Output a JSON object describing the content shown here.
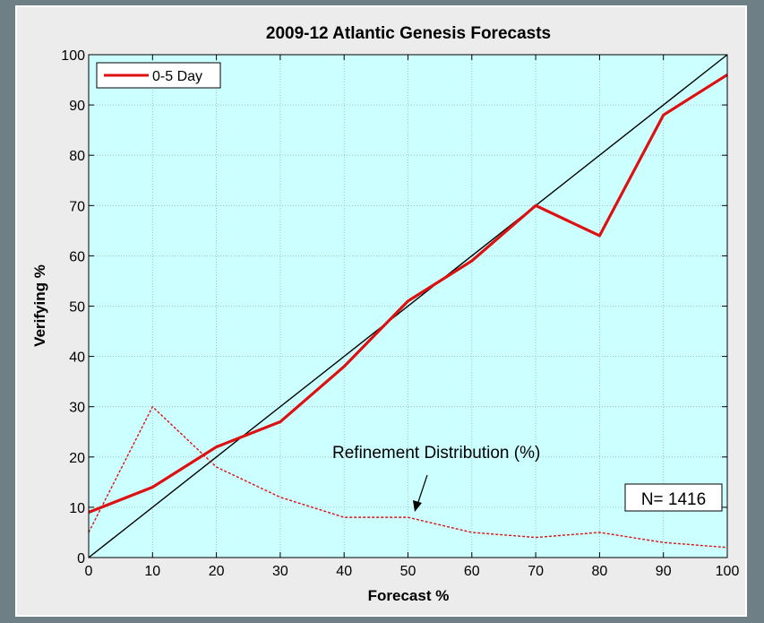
{
  "chart_data": {
    "type": "line",
    "title": "2009-12 Atlantic Genesis Forecasts",
    "xlabel": "Forecast %",
    "ylabel": "Verifying %",
    "xlim": [
      0,
      100
    ],
    "ylim": [
      0,
      100
    ],
    "xticks": [
      0,
      10,
      20,
      30,
      40,
      50,
      60,
      70,
      80,
      90,
      100
    ],
    "yticks": [
      0,
      10,
      20,
      30,
      40,
      50,
      60,
      70,
      80,
      90,
      100
    ],
    "grid": true,
    "legend_position": "top-left",
    "background_color": "#ccffff",
    "series": [
      {
        "name": "0-5 Day",
        "style": "solid",
        "color": "#dd1111",
        "x": [
          0,
          10,
          20,
          30,
          40,
          50,
          60,
          70,
          80,
          90,
          100
        ],
        "y": [
          9,
          14,
          22,
          27,
          38,
          51,
          59,
          70,
          64,
          88,
          96
        ]
      },
      {
        "style": "dashed",
        "color": "#dd1111",
        "x": [
          0,
          10,
          20,
          30,
          40,
          50,
          60,
          70,
          80,
          90,
          100
        ],
        "y": [
          5,
          30,
          18,
          12,
          8,
          8,
          5,
          4,
          5,
          3,
          2
        ]
      },
      {
        "style": "solid",
        "color": "#000000",
        "x": [
          0,
          100
        ],
        "y": [
          0,
          100
        ]
      }
    ],
    "annotations": {
      "refinement": "Refinement Distribution (%)",
      "count": "N= 1416"
    }
  }
}
